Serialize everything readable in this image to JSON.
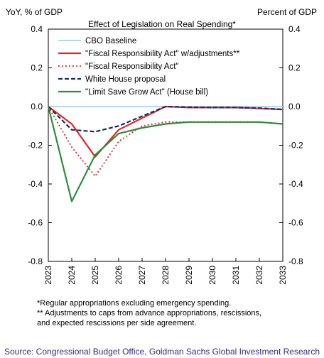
{
  "chart_data": {
    "type": "line",
    "title": "Effect of Legislation on Real Spending*",
    "ylabel_left": "YoY, % of GDP",
    "ylabel_right": "Percent of GDP",
    "xlabel": "",
    "x": [
      "2023",
      "2024",
      "2025",
      "2026",
      "2027",
      "2028",
      "2029",
      "2030",
      "2031",
      "2032",
      "2033"
    ],
    "ylim": [
      -0.8,
      0.4
    ],
    "yticks": [
      "0.4",
      "0.2",
      "0.0",
      "-0.2",
      "-0.4",
      "-0.6",
      "-0.8"
    ],
    "grid": false,
    "legend_placement": "top-left",
    "series": [
      {
        "name": "CBO Baseline",
        "color": "#9cc8e8",
        "style": "solid",
        "values": [
          0,
          0,
          0,
          0,
          0,
          0,
          0,
          0,
          0,
          0,
          0
        ]
      },
      {
        "name": "\"Fiscal Responsibility Act\" w/adjustments**",
        "color": "#e0262a",
        "style": "solid",
        "values": [
          0,
          -0.09,
          -0.26,
          -0.12,
          -0.06,
          0.0,
          -0.005,
          -0.005,
          -0.005,
          -0.01,
          -0.015
        ]
      },
      {
        "name": "\"Fiscal Responsibility Act\"",
        "color": "#e0262a",
        "style": "dotted",
        "values": [
          0,
          -0.21,
          -0.36,
          -0.18,
          -0.1,
          -0.08,
          -0.08,
          -0.08,
          -0.08,
          -0.08,
          -0.09
        ]
      },
      {
        "name": "White House proposal",
        "color": "#1a2c5e",
        "style": "dashed",
        "values": [
          0,
          -0.12,
          -0.13,
          -0.1,
          -0.05,
          0.0,
          -0.003,
          -0.005,
          -0.005,
          -0.008,
          -0.015
        ]
      },
      {
        "name": "\"Limit Save Grow Act\" (House bill)",
        "color": "#2e8b3e",
        "style": "solid",
        "values": [
          0,
          -0.49,
          -0.25,
          -0.14,
          -0.11,
          -0.09,
          -0.08,
          -0.08,
          -0.08,
          -0.08,
          -0.09
        ]
      }
    ]
  },
  "footnotes": {
    "line1": "*Regular appropriations excluding emergency spending.",
    "line2": "** Adjustments to caps from advance appropriations, rescissions,",
    "line3": "and expected rescissions per side agreement."
  },
  "source": "Source: Congressional Budget Office, Goldman Sachs Global Investment Research"
}
